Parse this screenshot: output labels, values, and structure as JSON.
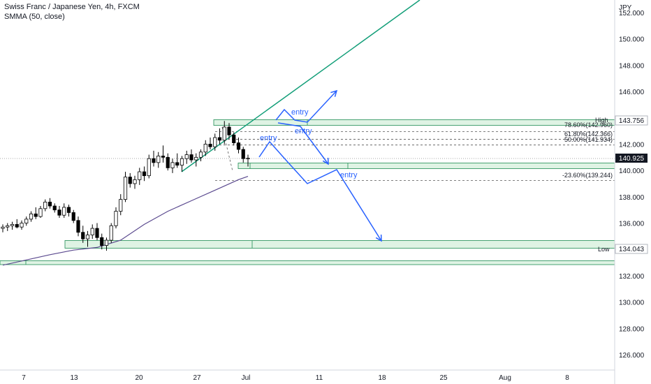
{
  "header": {
    "title": "Swiss Franc / Japanese Yen, 4h, FXCM",
    "indicator": "SMMA (50, close)"
  },
  "chart_data": {
    "type": "candlestick",
    "currency": "JPY",
    "ylim": [
      124.6,
      152.8
    ],
    "y_ticks": [
      "126.000",
      "128.000",
      "130.000",
      "132.000",
      "134.000",
      "136.000",
      "138.000",
      "140.000",
      "142.000",
      "144.000",
      "146.000",
      "148.000",
      "150.000",
      "152.000"
    ],
    "x_ticks": [
      "7",
      "13",
      "20",
      "27",
      "Jul",
      "11",
      "18",
      "25",
      "Aug",
      "8"
    ],
    "last_price": "140.925",
    "colors": {
      "bull": "#ffffff",
      "bear": "#000000",
      "wick": "#000000",
      "zone_fill": "#dff3e4",
      "zone_edge": "#1e8c53",
      "trendline": "#129e78",
      "smma": "#5b4a8f",
      "arrows": "#2962ff"
    },
    "fibonacci": {
      "high": {
        "label": "High",
        "value": "143.756"
      },
      "low": {
        "label": "Low",
        "value": "134.043"
      },
      "levels": [
        {
          "text": "78.60%(142.960)",
          "value": 142.96
        },
        {
          "text": "61.80%(142.366)",
          "value": 142.366
        },
        {
          "text": "50.00%(141.934)",
          "value": 141.934
        },
        {
          "text": "-23.60%(139.244)",
          "value": 139.244
        }
      ]
    },
    "annotations": [
      "entry",
      "entry",
      "entry",
      "entry"
    ],
    "candles": [
      {
        "o": 135.6,
        "h": 135.9,
        "l": 135.3,
        "c": 135.7
      },
      {
        "o": 135.7,
        "h": 136.0,
        "l": 135.4,
        "c": 135.8
      },
      {
        "o": 135.8,
        "h": 136.1,
        "l": 135.5,
        "c": 135.9
      },
      {
        "o": 135.9,
        "h": 136.3,
        "l": 135.6,
        "c": 135.7
      },
      {
        "o": 135.7,
        "h": 136.2,
        "l": 135.5,
        "c": 136.0
      },
      {
        "o": 136.0,
        "h": 136.5,
        "l": 135.8,
        "c": 136.3
      },
      {
        "o": 136.3,
        "h": 136.9,
        "l": 136.1,
        "c": 136.7
      },
      {
        "o": 136.7,
        "h": 137.2,
        "l": 136.3,
        "c": 136.5
      },
      {
        "o": 136.5,
        "h": 137.3,
        "l": 136.4,
        "c": 137.1
      },
      {
        "o": 137.1,
        "h": 137.8,
        "l": 136.9,
        "c": 137.6
      },
      {
        "o": 137.6,
        "h": 137.9,
        "l": 137.1,
        "c": 137.3
      },
      {
        "o": 137.3,
        "h": 137.5,
        "l": 136.8,
        "c": 137.0
      },
      {
        "o": 137.0,
        "h": 137.3,
        "l": 136.4,
        "c": 136.6
      },
      {
        "o": 136.6,
        "h": 137.5,
        "l": 136.4,
        "c": 137.2
      },
      {
        "o": 137.2,
        "h": 137.4,
        "l": 136.5,
        "c": 136.8
      },
      {
        "o": 136.8,
        "h": 137.0,
        "l": 136.0,
        "c": 136.2
      },
      {
        "o": 136.2,
        "h": 136.5,
        "l": 135.0,
        "c": 135.3
      },
      {
        "o": 135.3,
        "h": 135.8,
        "l": 134.5,
        "c": 134.8
      },
      {
        "o": 134.8,
        "h": 135.4,
        "l": 134.2,
        "c": 135.1
      },
      {
        "o": 135.1,
        "h": 135.9,
        "l": 134.8,
        "c": 135.6
      },
      {
        "o": 135.6,
        "h": 136.0,
        "l": 134.7,
        "c": 134.9
      },
      {
        "o": 134.9,
        "h": 135.2,
        "l": 134.0,
        "c": 134.3
      },
      {
        "o": 134.3,
        "h": 134.9,
        "l": 133.9,
        "c": 134.7
      },
      {
        "o": 134.7,
        "h": 136.0,
        "l": 134.5,
        "c": 135.8
      },
      {
        "o": 135.8,
        "h": 137.2,
        "l": 135.6,
        "c": 136.9
      },
      {
        "o": 136.9,
        "h": 138.2,
        "l": 136.6,
        "c": 137.8
      },
      {
        "o": 137.8,
        "h": 139.9,
        "l": 137.6,
        "c": 139.5
      },
      {
        "o": 139.5,
        "h": 139.8,
        "l": 138.7,
        "c": 139.0
      },
      {
        "o": 139.0,
        "h": 139.6,
        "l": 138.6,
        "c": 139.3
      },
      {
        "o": 139.3,
        "h": 140.2,
        "l": 138.9,
        "c": 139.9
      },
      {
        "o": 139.9,
        "h": 140.3,
        "l": 139.2,
        "c": 139.6
      },
      {
        "o": 139.6,
        "h": 141.2,
        "l": 139.4,
        "c": 140.9
      },
      {
        "o": 140.9,
        "h": 141.5,
        "l": 140.3,
        "c": 140.6
      },
      {
        "o": 140.6,
        "h": 141.4,
        "l": 140.2,
        "c": 141.1
      },
      {
        "o": 141.1,
        "h": 141.9,
        "l": 140.6,
        "c": 141.0
      },
      {
        "o": 141.0,
        "h": 141.3,
        "l": 140.0,
        "c": 140.2
      },
      {
        "o": 140.2,
        "h": 140.9,
        "l": 139.8,
        "c": 140.6
      },
      {
        "o": 140.6,
        "h": 141.3,
        "l": 140.2,
        "c": 140.4
      },
      {
        "o": 140.4,
        "h": 141.1,
        "l": 139.9,
        "c": 140.9
      },
      {
        "o": 140.9,
        "h": 141.5,
        "l": 140.5,
        "c": 141.2
      },
      {
        "o": 141.2,
        "h": 141.6,
        "l": 140.6,
        "c": 140.8
      },
      {
        "o": 140.8,
        "h": 141.3,
        "l": 140.3,
        "c": 141.0
      },
      {
        "o": 141.0,
        "h": 141.6,
        "l": 140.7,
        "c": 141.4
      },
      {
        "o": 141.4,
        "h": 142.3,
        "l": 141.1,
        "c": 142.0
      },
      {
        "o": 142.0,
        "h": 142.5,
        "l": 141.6,
        "c": 141.8
      },
      {
        "o": 141.8,
        "h": 142.8,
        "l": 141.5,
        "c": 142.5
      },
      {
        "o": 142.5,
        "h": 143.2,
        "l": 142.0,
        "c": 142.3
      },
      {
        "o": 142.3,
        "h": 143.76,
        "l": 142.0,
        "c": 143.3
      },
      {
        "o": 143.3,
        "h": 143.6,
        "l": 142.4,
        "c": 142.7
      },
      {
        "o": 142.7,
        "h": 142.9,
        "l": 141.9,
        "c": 142.1
      },
      {
        "o": 142.1,
        "h": 142.5,
        "l": 141.3,
        "c": 141.6
      },
      {
        "o": 141.6,
        "h": 141.8,
        "l": 140.6,
        "c": 140.9
      },
      {
        "o": 140.9,
        "h": 141.2,
        "l": 140.3,
        "c": 140.93
      }
    ],
    "smma": [
      {
        "i": 0,
        "v": 132.8
      },
      {
        "i": 5,
        "v": 133.2
      },
      {
        "i": 10,
        "v": 133.6
      },
      {
        "i": 15,
        "v": 133.95
      },
      {
        "i": 20,
        "v": 134.15
      },
      {
        "i": 25,
        "v": 134.7
      },
      {
        "i": 30,
        "v": 135.9
      },
      {
        "i": 35,
        "v": 136.9
      },
      {
        "i": 40,
        "v": 137.7
      },
      {
        "i": 45,
        "v": 138.5
      },
      {
        "i": 50,
        "v": 139.3
      },
      {
        "i": 52,
        "v": 139.55
      }
    ]
  }
}
